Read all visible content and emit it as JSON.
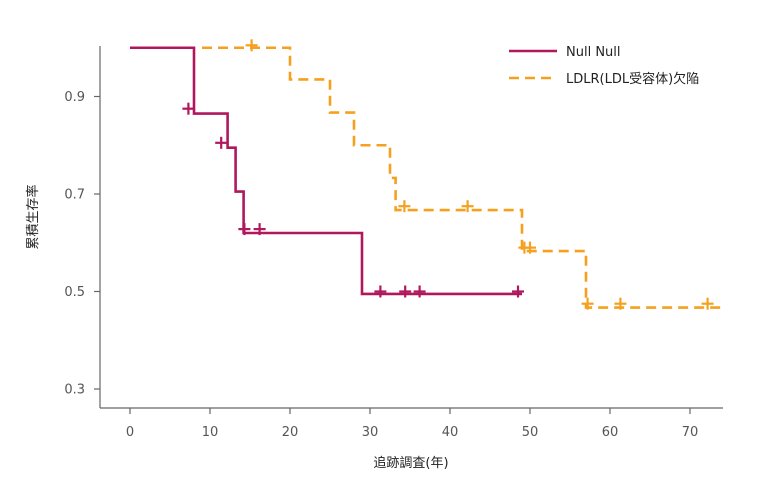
{
  "chart_data": {
    "type": "line",
    "subtype": "kaplan-meier step",
    "xlabel": "追跡調査(年)",
    "ylabel": "累積生存率",
    "xlim": [
      -4,
      74
    ],
    "ylim": [
      0.26,
      1.03
    ],
    "xticks": [
      0,
      10,
      20,
      30,
      40,
      50,
      60,
      70
    ],
    "yticks": [
      0.3,
      0.5,
      0.7,
      0.9
    ],
    "xtick_labels": [
      "0",
      "10",
      "20",
      "30",
      "40",
      "50",
      "60",
      "70"
    ],
    "ytick_labels": [
      "0.3",
      "0.5",
      "0.7",
      "0.9"
    ],
    "grid": false,
    "legend_position": "top-right",
    "series": [
      {
        "name": "Null Null",
        "color": "#B0185E",
        "style": "solid",
        "steps": [
          [
            0,
            1.0
          ],
          [
            8,
            0.865
          ],
          [
            12.2,
            0.795
          ],
          [
            13.2,
            0.705
          ],
          [
            14.2,
            0.62
          ],
          [
            29,
            0.495
          ],
          [
            49,
            0.495
          ]
        ],
        "censored": [
          [
            7.3,
            0.875
          ],
          [
            11.4,
            0.805
          ],
          [
            14.3,
            0.628
          ],
          [
            16.2,
            0.628
          ],
          [
            31.3,
            0.5
          ],
          [
            34.4,
            0.5
          ],
          [
            36.2,
            0.5
          ],
          [
            48.5,
            0.5
          ]
        ]
      },
      {
        "name": "LDLR(LDL受容体)欠陥",
        "color": "#F5A11F",
        "style": "dashed",
        "steps": [
          [
            9,
            1.0
          ],
          [
            20,
            0.935
          ],
          [
            25,
            0.867
          ],
          [
            28,
            0.8
          ],
          [
            32.5,
            0.733
          ],
          [
            33.2,
            0.667
          ],
          [
            49,
            0.583
          ],
          [
            57,
            0.467
          ],
          [
            74,
            0.467
          ]
        ],
        "censored": [
          [
            15.2,
            1.005
          ],
          [
            34.3,
            0.675
          ],
          [
            42.2,
            0.675
          ],
          [
            49.3,
            0.59
          ],
          [
            50,
            0.59
          ],
          [
            57.2,
            0.475
          ],
          [
            61.3,
            0.475
          ],
          [
            72.2,
            0.475
          ]
        ]
      }
    ]
  }
}
